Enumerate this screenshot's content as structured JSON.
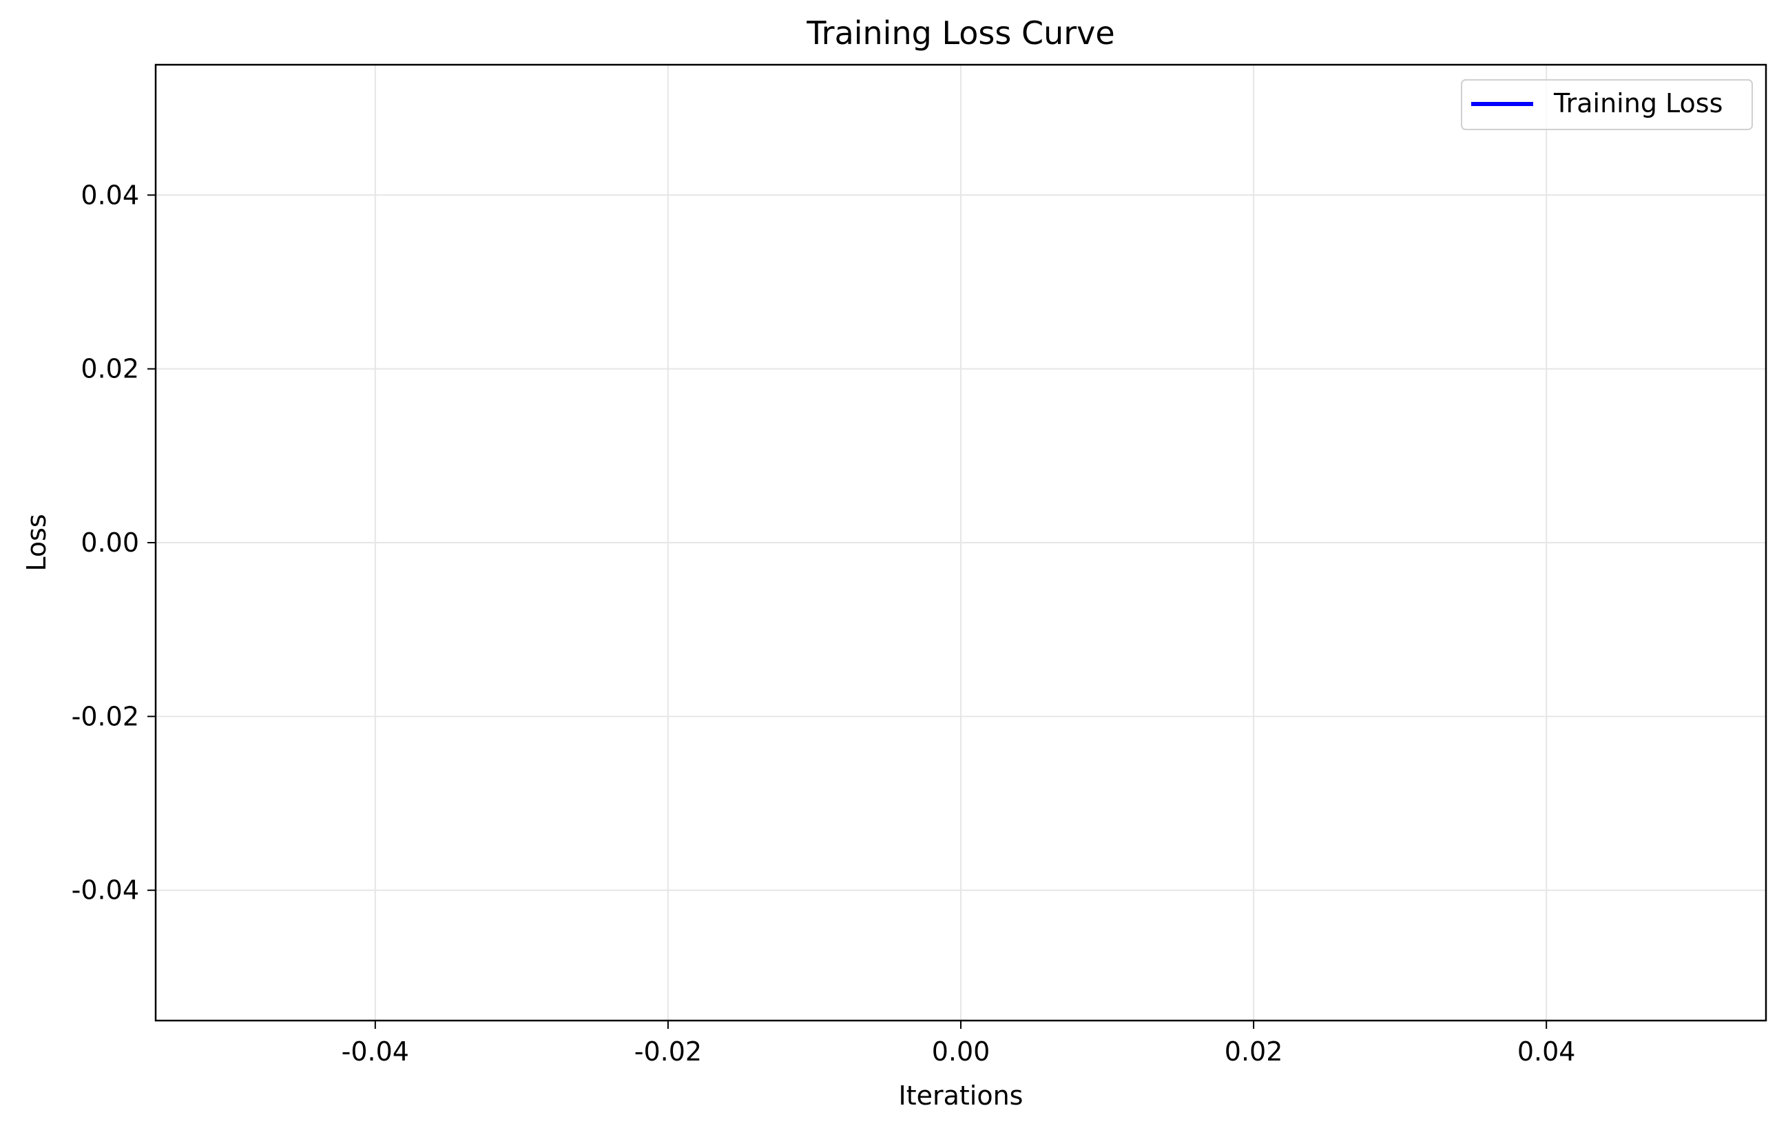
{
  "chart_data": {
    "type": "line",
    "title": "Training Loss Curve",
    "xlabel": "Iterations",
    "ylabel": "Loss",
    "xlim": [
      -0.055,
      0.055
    ],
    "ylim": [
      -0.055,
      0.055
    ],
    "x_ticks": [
      -0.04,
      -0.02,
      0.0,
      0.02,
      0.04
    ],
    "x_tick_labels": [
      "-0.04",
      "-0.02",
      "0.00",
      "0.02",
      "0.04"
    ],
    "y_ticks": [
      -0.04,
      -0.02,
      0.0,
      0.02,
      0.04
    ],
    "y_tick_labels": [
      "-0.04",
      "-0.02",
      "0.00",
      "0.02",
      "0.04"
    ],
    "grid": true,
    "legend_position": "top-right",
    "series": [
      {
        "name": "Training Loss",
        "color": "#0000ff",
        "x": [],
        "y": []
      }
    ]
  }
}
